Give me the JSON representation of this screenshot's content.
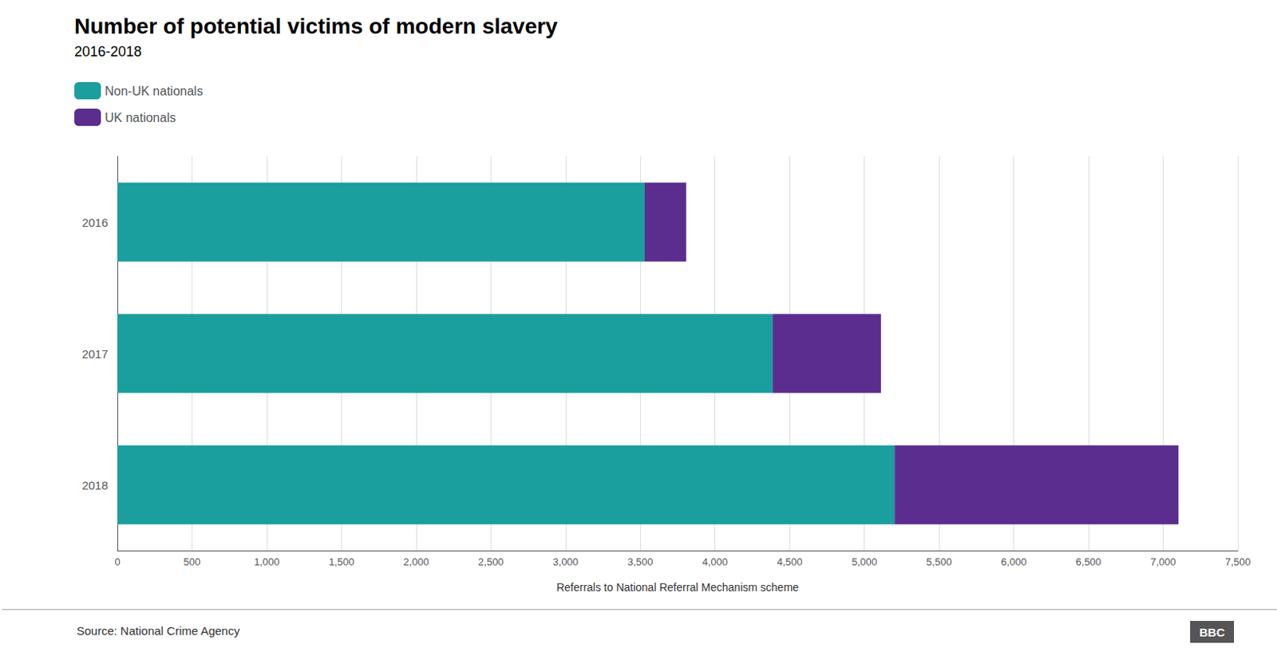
{
  "chart_data": {
    "type": "bar",
    "orientation": "horizontal",
    "stacked": true,
    "title": "Number of potential victims of modern slavery",
    "subtitle": "2016-2018",
    "categories": [
      "2016",
      "2017",
      "2018"
    ],
    "series": [
      {
        "name": "Non-UK nationals",
        "color": "#1a9e9e",
        "values": [
          3530,
          4385,
          5202
        ]
      },
      {
        "name": "UK nationals",
        "color": "#5b2d8e",
        "values": [
          277,
          726,
          1900
        ]
      }
    ],
    "xlabel": "Referrals to National Referral Mechanism scheme",
    "xlim": [
      0,
      7500
    ],
    "xticks": [
      0,
      500,
      {
        "value": 1000,
        "label": "1,000"
      },
      {
        "value": 1500,
        "label": "1,500"
      },
      {
        "value": 2000,
        "label": "2,000"
      },
      {
        "value": 2500,
        "label": "2,500"
      },
      {
        "value": 3000,
        "label": "3,000"
      },
      {
        "value": 3500,
        "label": "3,500"
      },
      {
        "value": 4000,
        "label": "4,000"
      },
      {
        "value": 4500,
        "label": "4,500"
      },
      {
        "value": 5000,
        "label": "5,000"
      },
      {
        "value": 5500,
        "label": "5,500"
      },
      {
        "value": 6000,
        "label": "6,000"
      },
      {
        "value": 6500,
        "label": "6,500"
      },
      {
        "value": 7000,
        "label": "7,000"
      },
      {
        "value": 7500,
        "label": "7,500"
      }
    ],
    "grid": true,
    "legend": "top-left",
    "annotations": [
      "Source: National Crime Agency",
      "BBC"
    ]
  }
}
